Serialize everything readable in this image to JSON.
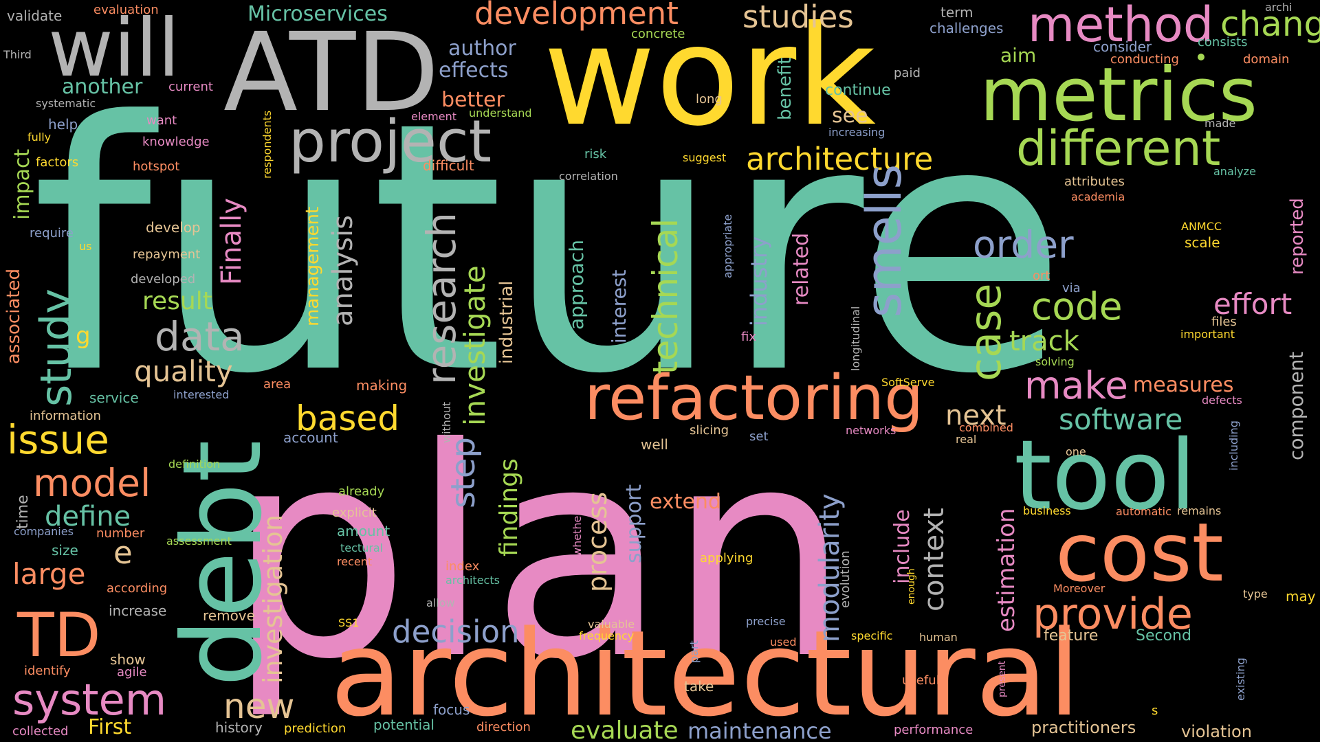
{
  "palette": {
    "background": "#000000",
    "teal": "#66C2A5",
    "orange": "#FC8D62",
    "blue": "#8DA0CB",
    "pink": "#E78AC3",
    "green": "#A6D854",
    "yellow": "#FFD92F",
    "tan": "#E5C494",
    "gray": "#B3B3B3"
  },
  "words": [
    {
      "text": "future",
      "color": "teal"
    },
    {
      "text": "plan",
      "color": "pink"
    },
    {
      "text": "work",
      "color": "yellow"
    },
    {
      "text": "architectural",
      "color": "orange"
    },
    {
      "text": "debt",
      "color": "teal"
    },
    {
      "text": "ATD",
      "color": "gray"
    },
    {
      "text": "will",
      "color": "gray"
    },
    {
      "text": "metrics",
      "color": "green"
    },
    {
      "text": "tool",
      "color": "teal"
    },
    {
      "text": "cost",
      "color": "orange"
    },
    {
      "text": "refactoring",
      "color": "orange"
    },
    {
      "text": "project",
      "color": "gray"
    },
    {
      "text": "method",
      "color": "pink"
    },
    {
      "text": "different",
      "color": "green"
    },
    {
      "text": "architecture",
      "color": "yellow"
    },
    {
      "text": "smells",
      "color": "blue"
    },
    {
      "text": "study",
      "color": "teal"
    },
    {
      "text": "TD",
      "color": "orange"
    },
    {
      "text": "system",
      "color": "pink"
    },
    {
      "text": "provide",
      "color": "orange"
    },
    {
      "text": "change",
      "color": "green"
    },
    {
      "text": "development",
      "color": "orange"
    },
    {
      "text": "studies",
      "color": "tan"
    },
    {
      "text": "research",
      "color": "gray"
    },
    {
      "text": "code",
      "color": "green"
    },
    {
      "text": "order",
      "color": "blue"
    },
    {
      "text": "case",
      "color": "green"
    },
    {
      "text": "technical",
      "color": "green"
    },
    {
      "text": "data",
      "color": "gray"
    },
    {
      "text": "issue",
      "color": "yellow"
    },
    {
      "text": "model",
      "color": "orange"
    },
    {
      "text": "based",
      "color": "yellow"
    },
    {
      "text": "make",
      "color": "pink"
    },
    {
      "text": "decision",
      "color": "blue"
    },
    {
      "text": "Finally",
      "color": "pink"
    },
    {
      "text": "step",
      "color": "blue"
    },
    {
      "text": "software",
      "color": "teal"
    },
    {
      "text": "quality",
      "color": "tan"
    },
    {
      "text": "analysis",
      "color": "gray"
    },
    {
      "text": "effort",
      "color": "pink"
    },
    {
      "text": "new",
      "color": "tan"
    },
    {
      "text": "track",
      "color": "green"
    },
    {
      "text": "investigate",
      "color": "green"
    },
    {
      "text": "context",
      "color": "gray"
    },
    {
      "text": "next",
      "color": "tan"
    },
    {
      "text": "investigation",
      "color": "tan"
    },
    {
      "text": "large",
      "color": "orange"
    },
    {
      "text": "define",
      "color": "teal"
    },
    {
      "text": "modularity",
      "color": "blue"
    },
    {
      "text": "evaluate",
      "color": "green"
    },
    {
      "text": "maintenance",
      "color": "blue"
    },
    {
      "text": "process",
      "color": "tan"
    },
    {
      "text": "estimation",
      "color": "pink"
    },
    {
      "text": "findings",
      "color": "green"
    },
    {
      "text": "result",
      "color": "green"
    },
    {
      "text": "industry",
      "color": "blue"
    },
    {
      "text": "Microservices",
      "color": "teal"
    },
    {
      "text": "related",
      "color": "pink"
    },
    {
      "text": "better",
      "color": "orange"
    },
    {
      "text": "author",
      "color": "blue"
    },
    {
      "text": "effects",
      "color": "blue"
    },
    {
      "text": "another",
      "color": "teal"
    },
    {
      "text": "impact",
      "color": "green"
    },
    {
      "text": "associated",
      "color": "orange"
    },
    {
      "text": "management",
      "color": "yellow"
    },
    {
      "text": "include",
      "color": "pink"
    },
    {
      "text": "measures",
      "color": "orange"
    },
    {
      "text": "support",
      "color": "blue"
    },
    {
      "text": "component",
      "color": "gray"
    },
    {
      "text": "reported",
      "color": "pink"
    },
    {
      "text": "extend",
      "color": "orange"
    },
    {
      "text": "industrial",
      "color": "tan"
    },
    {
      "text": "approach",
      "color": "teal"
    },
    {
      "text": "interest",
      "color": "blue"
    },
    {
      "text": "benefit",
      "color": "teal"
    },
    {
      "text": "First",
      "color": "yellow"
    },
    {
      "text": "practitioners",
      "color": "tan"
    },
    {
      "text": "violation",
      "color": "tan"
    },
    {
      "text": "see",
      "color": "tan"
    },
    {
      "text": "aim",
      "color": "green"
    },
    {
      "text": "continue",
      "color": "teal"
    },
    {
      "text": "e",
      "color": "tan"
    },
    {
      "text": "g",
      "color": "yellow"
    },
    {
      "text": "time",
      "color": "gray"
    },
    {
      "text": "feature",
      "color": "tan"
    },
    {
      "text": "Second",
      "color": "teal"
    },
    {
      "text": "may",
      "color": "yellow"
    },
    {
      "text": "validate",
      "color": "gray"
    },
    {
      "text": "evaluation",
      "color": "orange"
    },
    {
      "text": "concrete",
      "color": "green"
    },
    {
      "text": "term",
      "color": "gray"
    },
    {
      "text": "challenges",
      "color": "blue"
    },
    {
      "text": "archi",
      "color": "gray"
    },
    {
      "text": "consists",
      "color": "teal"
    },
    {
      "text": "consider",
      "color": "blue"
    },
    {
      "text": "conducting",
      "color": "orange"
    },
    {
      "text": "domain",
      "color": "orange"
    },
    {
      "text": "paid",
      "color": "gray"
    },
    {
      "text": "Third",
      "color": "gray"
    },
    {
      "text": "current",
      "color": "pink"
    },
    {
      "text": "systematic",
      "color": "gray"
    },
    {
      "text": "help",
      "color": "blue"
    },
    {
      "text": "fully",
      "color": "yellow"
    },
    {
      "text": "factors",
      "color": "yellow"
    },
    {
      "text": "want",
      "color": "pink"
    },
    {
      "text": "element",
      "color": "pink"
    },
    {
      "text": "understand",
      "color": "green"
    },
    {
      "text": "long",
      "color": "tan"
    },
    {
      "text": "made",
      "color": "gray"
    },
    {
      "text": "increasing",
      "color": "blue"
    },
    {
      "text": "knowledge",
      "color": "pink"
    },
    {
      "text": "hotspot",
      "color": "orange"
    },
    {
      "text": "respondents",
      "color": "yellow"
    },
    {
      "text": "difficult",
      "color": "orange"
    },
    {
      "text": "correlation",
      "color": "gray"
    },
    {
      "text": "risk",
      "color": "teal"
    },
    {
      "text": "suggest",
      "color": "yellow"
    },
    {
      "text": "attributes",
      "color": "tan"
    },
    {
      "text": "academia",
      "color": "orange"
    },
    {
      "text": "analyze",
      "color": "teal"
    },
    {
      "text": "require",
      "color": "blue"
    },
    {
      "text": "us",
      "color": "yellow"
    },
    {
      "text": "develop",
      "color": "tan"
    },
    {
      "text": "repayment",
      "color": "tan"
    },
    {
      "text": "developed",
      "color": "gray"
    },
    {
      "text": "appropriate",
      "color": "blue"
    },
    {
      "text": "ANMCC",
      "color": "yellow"
    },
    {
      "text": "scale",
      "color": "yellow"
    },
    {
      "text": "ort",
      "color": "orange"
    },
    {
      "text": "via",
      "color": "blue"
    },
    {
      "text": "longitudinal",
      "color": "gray"
    },
    {
      "text": "files",
      "color": "tan"
    },
    {
      "text": "important",
      "color": "yellow"
    },
    {
      "text": "solving",
      "color": "green"
    },
    {
      "text": "fix",
      "color": "pink"
    },
    {
      "text": "SoftServe",
      "color": "yellow"
    },
    {
      "text": "defects",
      "color": "pink"
    },
    {
      "text": "service",
      "color": "teal"
    },
    {
      "text": "interested",
      "color": "blue"
    },
    {
      "text": "area",
      "color": "orange"
    },
    {
      "text": "making",
      "color": "orange"
    },
    {
      "text": "information",
      "color": "tan"
    },
    {
      "text": "without",
      "color": "gray"
    },
    {
      "text": "account",
      "color": "blue"
    },
    {
      "text": "well",
      "color": "tan"
    },
    {
      "text": "slicing",
      "color": "tan"
    },
    {
      "text": "set",
      "color": "blue"
    },
    {
      "text": "networks",
      "color": "pink"
    },
    {
      "text": "combined",
      "color": "orange"
    },
    {
      "text": "real",
      "color": "tan"
    },
    {
      "text": "one",
      "color": "tan"
    },
    {
      "text": "including",
      "color": "blue"
    },
    {
      "text": "definition",
      "color": "green"
    },
    {
      "text": "already",
      "color": "green"
    },
    {
      "text": "explicit",
      "color": "tan"
    },
    {
      "text": "amount",
      "color": "teal"
    },
    {
      "text": "tectural",
      "color": "teal"
    },
    {
      "text": "recent",
      "color": "orange"
    },
    {
      "text": "whether",
      "color": "pink"
    },
    {
      "text": "companies",
      "color": "blue"
    },
    {
      "text": "number",
      "color": "orange"
    },
    {
      "text": "assessment",
      "color": "green"
    },
    {
      "text": "size",
      "color": "teal"
    },
    {
      "text": "according",
      "color": "orange"
    },
    {
      "text": "index",
      "color": "orange"
    },
    {
      "text": "architects",
      "color": "teal"
    },
    {
      "text": "applying",
      "color": "yellow"
    },
    {
      "text": "evolution",
      "color": "gray"
    },
    {
      "text": "enough",
      "color": "yellow"
    },
    {
      "text": "business",
      "color": "yellow"
    },
    {
      "text": "automatic",
      "color": "orange"
    },
    {
      "text": "remains",
      "color": "tan"
    },
    {
      "text": "Moreover",
      "color": "orange"
    },
    {
      "text": "type",
      "color": "tan"
    },
    {
      "text": "increase",
      "color": "gray"
    },
    {
      "text": "remove",
      "color": "tan"
    },
    {
      "text": "allow",
      "color": "gray"
    },
    {
      "text": "SS1",
      "color": "yellow"
    },
    {
      "text": "valuable",
      "color": "tan"
    },
    {
      "text": "precise",
      "color": "blue"
    },
    {
      "text": "frequency",
      "color": "yellow"
    },
    {
      "text": "part",
      "color": "blue"
    },
    {
      "text": "used",
      "color": "orange"
    },
    {
      "text": "specific",
      "color": "yellow"
    },
    {
      "text": "human",
      "color": "tan"
    },
    {
      "text": "present",
      "color": "pink"
    },
    {
      "text": "existing",
      "color": "blue"
    },
    {
      "text": "show",
      "color": "tan"
    },
    {
      "text": "identify",
      "color": "orange"
    },
    {
      "text": "agile",
      "color": "pink"
    },
    {
      "text": "take",
      "color": "tan"
    },
    {
      "text": "useful",
      "color": "orange"
    },
    {
      "text": "focus",
      "color": "blue"
    },
    {
      "text": "collected",
      "color": "pink"
    },
    {
      "text": "history",
      "color": "gray"
    },
    {
      "text": "prediction",
      "color": "yellow"
    },
    {
      "text": "potential",
      "color": "teal"
    },
    {
      "text": "direction",
      "color": "orange"
    },
    {
      "text": "performance",
      "color": "pink"
    },
    {
      "text": "s",
      "color": "yellow"
    }
  ]
}
